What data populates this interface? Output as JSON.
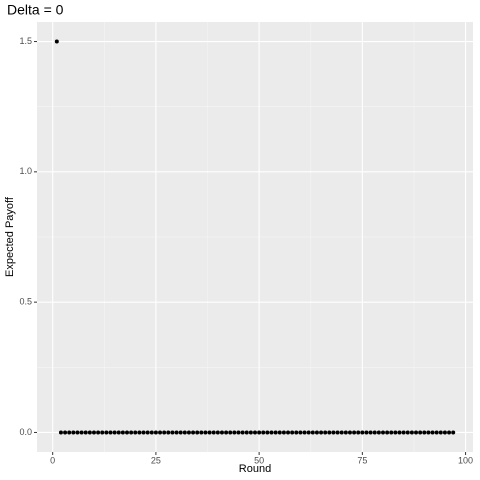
{
  "chart_data": {
    "type": "scatter",
    "title": "Delta = 0",
    "x_label": "Round",
    "y_label": "Expected Payoff",
    "x": [
      1,
      2,
      3,
      4,
      5,
      6,
      7,
      8,
      9,
      10,
      11,
      12,
      13,
      14,
      15,
      16,
      17,
      18,
      19,
      20,
      21,
      22,
      23,
      24,
      25,
      26,
      27,
      28,
      29,
      30,
      31,
      32,
      33,
      34,
      35,
      36,
      37,
      38,
      39,
      40,
      41,
      42,
      43,
      44,
      45,
      46,
      47,
      48,
      49,
      50,
      51,
      52,
      53,
      54,
      55,
      56,
      57,
      58,
      59,
      60,
      61,
      62,
      63,
      64,
      65,
      66,
      67,
      68,
      69,
      70,
      71,
      72,
      73,
      74,
      75,
      76,
      77,
      78,
      79,
      80,
      81,
      82,
      83,
      84,
      85,
      86,
      87,
      88,
      89,
      90,
      91,
      92,
      93,
      94,
      95,
      96,
      97
    ],
    "values": [
      1.5,
      0,
      0,
      0,
      0,
      0,
      0,
      0,
      0,
      0,
      0,
      0,
      0,
      0,
      0,
      0,
      0,
      0,
      0,
      0,
      0,
      0,
      0,
      0,
      0,
      0,
      0,
      0,
      0,
      0,
      0,
      0,
      0,
      0,
      0,
      0,
      0,
      0,
      0,
      0,
      0,
      0,
      0,
      0,
      0,
      0,
      0,
      0,
      0,
      0,
      0,
      0,
      0,
      0,
      0,
      0,
      0,
      0,
      0,
      0,
      0,
      0,
      0,
      0,
      0,
      0,
      0,
      0,
      0,
      0,
      0,
      0,
      0,
      0,
      0,
      0,
      0,
      0,
      0,
      0,
      0,
      0,
      0,
      0,
      0,
      0,
      0,
      0,
      0,
      0,
      0,
      0,
      0,
      0,
      0,
      0,
      0
    ],
    "color": "#000000",
    "xlim": [
      -3.8,
      101.8
    ],
    "xticks": [
      0,
      25,
      50,
      75,
      100
    ],
    "ylim": [
      -0.075,
      1.575
    ],
    "yticks": [
      {
        "value": 0,
        "label": "0.0"
      },
      0.5,
      {
        "value": 1,
        "label": "1.0"
      },
      1.5
    ],
    "grid": true
  }
}
